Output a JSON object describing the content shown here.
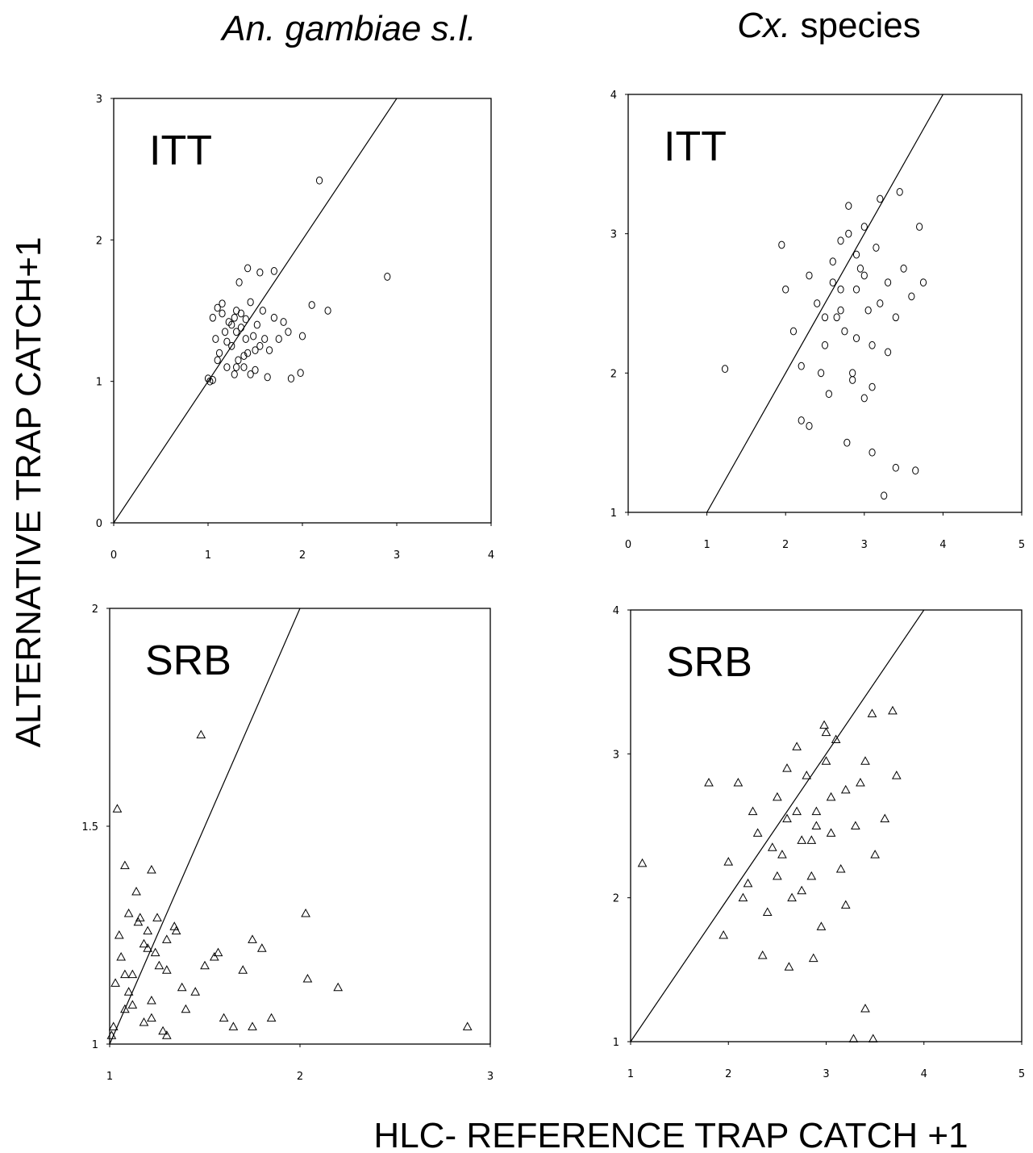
{
  "column_titles": [
    {
      "italic": "An. gambiae s.l."
    },
    {
      "italic": "Cx.",
      "text": "species"
    }
  ],
  "y_label": "ALTERNATIVE TRAP CATCH+1",
  "x_label": "HLC- REFERENCE TRAP CATCH +1",
  "chart_data": [
    {
      "type": "scatter",
      "annotation": "ITT",
      "marker": "circle",
      "color": "#000000",
      "xlim": [
        0,
        4
      ],
      "ylim": [
        0,
        3
      ],
      "xticks": [
        0,
        1,
        2,
        3,
        4
      ],
      "yticks": [
        0,
        1,
        2,
        3
      ],
      "x": [
        1.0,
        1.02,
        1.05,
        2.18,
        2.9,
        2.27,
        2.1,
        1.42,
        1.7,
        1.55,
        1.33,
        2.0,
        1.98,
        1.88,
        1.63,
        1.05,
        1.08,
        1.1,
        1.12,
        1.15,
        1.18,
        1.2,
        1.22,
        1.25,
        1.28,
        1.3,
        1.32,
        1.35,
        1.38,
        1.4,
        1.42,
        1.45,
        1.48,
        1.5,
        1.52,
        1.55,
        1.58,
        1.6,
        1.65,
        1.7,
        1.75,
        1.8,
        1.85,
        1.1,
        1.15,
        1.2,
        1.25,
        1.3,
        1.35,
        1.4,
        1.45,
        1.5,
        1.3,
        1.38,
        1.28
      ],
      "values": [
        1.02,
        1.0,
        1.01,
        2.42,
        1.74,
        1.5,
        1.54,
        1.8,
        1.78,
        1.77,
        1.7,
        1.32,
        1.06,
        1.02,
        1.03,
        1.45,
        1.3,
        1.52,
        1.2,
        1.48,
        1.35,
        1.1,
        1.42,
        1.25,
        1.05,
        1.5,
        1.15,
        1.38,
        1.1,
        1.44,
        1.2,
        1.56,
        1.32,
        1.08,
        1.4,
        1.25,
        1.5,
        1.3,
        1.22,
        1.45,
        1.3,
        1.42,
        1.35,
        1.15,
        1.55,
        1.28,
        1.4,
        1.1,
        1.48,
        1.3,
        1.05,
        1.22,
        1.35,
        1.18,
        1.45
      ]
    },
    {
      "type": "scatter",
      "annotation": "ITT",
      "marker": "circle",
      "color": "#000000",
      "xlim": [
        0,
        5
      ],
      "ylim": [
        1,
        4
      ],
      "xticks": [
        0,
        1,
        2,
        3,
        4,
        5
      ],
      "yticks": [
        1,
        2,
        3,
        4
      ],
      "x": [
        1.23,
        3.25,
        3.4,
        3.65,
        3.1,
        2.78,
        2.2,
        2.3,
        1.95,
        2.0,
        2.1,
        2.2,
        2.3,
        2.4,
        2.5,
        2.55,
        2.6,
        2.65,
        2.7,
        2.75,
        2.8,
        2.85,
        2.9,
        2.95,
        3.0,
        3.05,
        3.1,
        3.15,
        3.2,
        3.3,
        3.4,
        3.5,
        3.6,
        3.7,
        3.75,
        2.45,
        2.6,
        2.7,
        2.8,
        2.9,
        3.0,
        3.1,
        3.2,
        3.3,
        2.5,
        2.7,
        2.9,
        3.0,
        2.85,
        3.45
      ],
      "values": [
        2.03,
        1.12,
        1.32,
        1.3,
        1.43,
        1.5,
        1.66,
        1.62,
        2.92,
        2.6,
        2.3,
        2.05,
        2.7,
        2.5,
        2.2,
        1.85,
        2.65,
        2.4,
        2.95,
        2.3,
        3.2,
        2.0,
        2.6,
        2.75,
        3.05,
        2.45,
        2.2,
        2.9,
        3.25,
        2.65,
        2.4,
        2.75,
        2.55,
        3.05,
        2.65,
        2.0,
        2.8,
        2.45,
        3.0,
        2.25,
        2.7,
        1.9,
        2.5,
        2.15,
        2.4,
        2.6,
        2.85,
        1.82,
        1.95,
        3.3
      ]
    },
    {
      "type": "scatter",
      "annotation": "SRB",
      "marker": "triangle",
      "color": "#000000",
      "xlim": [
        1,
        3
      ],
      "ylim": [
        1,
        2
      ],
      "xticks": [
        1,
        2,
        3
      ],
      "yticks": [
        1,
        1.5,
        2
      ],
      "x": [
        1.48,
        1.04,
        1.08,
        1.22,
        2.03,
        2.88,
        2.2,
        2.04,
        1.75,
        1.8,
        1.65,
        1.6,
        1.55,
        1.5,
        1.45,
        1.4,
        1.35,
        1.3,
        1.28,
        1.25,
        1.22,
        1.2,
        1.18,
        1.15,
        1.12,
        1.1,
        1.08,
        1.05,
        1.03,
        1.01,
        1.02,
        1.06,
        1.1,
        1.14,
        1.18,
        1.22,
        1.26,
        1.3,
        1.34,
        1.38,
        1.16,
        1.2,
        1.24,
        1.12,
        1.08,
        1.75,
        1.85,
        1.7,
        1.57,
        1.3
      ],
      "values": [
        1.71,
        1.54,
        1.41,
        1.4,
        1.3,
        1.04,
        1.13,
        1.15,
        1.24,
        1.22,
        1.04,
        1.06,
        1.2,
        1.18,
        1.12,
        1.08,
        1.26,
        1.17,
        1.03,
        1.29,
        1.1,
        1.22,
        1.05,
        1.28,
        1.16,
        1.3,
        1.08,
        1.25,
        1.14,
        1.02,
        1.04,
        1.2,
        1.12,
        1.35,
        1.23,
        1.06,
        1.18,
        1.02,
        1.27,
        1.13,
        1.29,
        1.26,
        1.21,
        1.09,
        1.16,
        1.04,
        1.06,
        1.17,
        1.21,
        1.24
      ]
    },
    {
      "type": "scatter",
      "annotation": "SRB",
      "marker": "triangle",
      "color": "#000000",
      "xlim": [
        1,
        5
      ],
      "ylim": [
        1,
        4
      ],
      "xticks": [
        1,
        2,
        3,
        4,
        5
      ],
      "yticks": [
        1,
        2,
        3,
        4
      ],
      "x": [
        1.12,
        1.8,
        1.95,
        3.28,
        3.48,
        3.4,
        3.68,
        3.47,
        2.98,
        2.35,
        2.62,
        2.87,
        2.0,
        2.1,
        2.2,
        2.3,
        2.4,
        2.5,
        2.55,
        2.6,
        2.65,
        2.7,
        2.75,
        2.8,
        2.85,
        2.9,
        2.95,
        3.0,
        3.05,
        3.1,
        3.15,
        3.2,
        3.3,
        3.4,
        3.5,
        3.6,
        3.72,
        2.25,
        2.45,
        2.6,
        2.75,
        2.9,
        3.05,
        3.2,
        3.35,
        2.5,
        2.7,
        2.85,
        3.0,
        2.15
      ],
      "values": [
        2.24,
        2.8,
        1.74,
        1.02,
        1.02,
        1.23,
        3.3,
        3.28,
        3.2,
        1.6,
        1.52,
        1.58,
        2.25,
        2.8,
        2.1,
        2.45,
        1.9,
        2.7,
        2.3,
        2.55,
        2.0,
        3.05,
        2.4,
        2.85,
        2.15,
        2.6,
        1.8,
        2.95,
        2.45,
        3.1,
        2.2,
        2.75,
        2.5,
        2.95,
        2.3,
        2.55,
        2.85,
        2.6,
        2.35,
        2.9,
        2.05,
        2.5,
        2.7,
        1.95,
        2.8,
        2.15,
        2.6,
        2.4,
        3.15,
        2.0
      ]
    }
  ]
}
